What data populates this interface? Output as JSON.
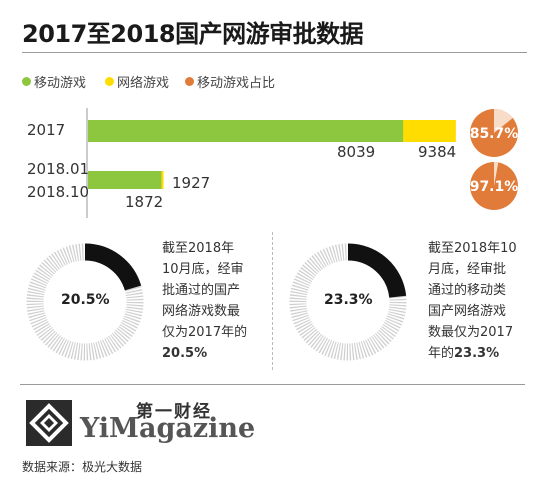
{
  "title": "2017至2018国产网游审批数据",
  "legend": [
    {
      "label": "移动游戏",
      "color": "#8dc63f"
    },
    {
      "label": "网络游戏",
      "color": "#ffdd00"
    },
    {
      "label": "移动游戏占比",
      "color": "#e07b39"
    }
  ],
  "chart_data": [
    {
      "type": "bar",
      "orientation": "horizontal",
      "stacked": true,
      "categories": [
        "2017",
        "2018.01\n2018.10"
      ],
      "category_labels": {
        "y2017": "2017",
        "y2018_line1": "2018.01",
        "y2018_line2": "2018.10"
      },
      "series": [
        {
          "name": "移动游戏",
          "values": [
            8039,
            1872
          ],
          "color": "#8dc63f"
        },
        {
          "name": "网络游戏",
          "values": [
            9384,
            1927
          ],
          "color": "#ffdd00"
        }
      ],
      "value_labels": {
        "mobile_2017": "8039",
        "total_2017": "9384",
        "total_2018": "1927",
        "mobile_2018": "1872"
      },
      "share": {
        "name": "移动游戏占比",
        "values": [
          85.7,
          97.1
        ],
        "labels": [
          "85.7%",
          "97.1%"
        ],
        "color": "#e07b39"
      }
    },
    {
      "type": "pie",
      "donut": true,
      "value": 20.5,
      "center_label": "20.5%",
      "note_lines": [
        "截至2018年",
        "10月底，经审",
        "批通过的国产",
        "网络游戏数最",
        "仅为2017年的"
      ],
      "note_bold": "20.5%"
    },
    {
      "type": "pie",
      "donut": true,
      "value": 23.3,
      "center_label": "23.3%",
      "note_lines": [
        "截至2018年10",
        "月底，经审批",
        "通过的移动类",
        "国产网络游戏",
        "数最仅为2017"
      ],
      "note_tail": "年的",
      "note_bold": "23.3%"
    }
  ],
  "brand": {
    "cn": "第一财经",
    "en": "YiMagazine"
  },
  "source": "数据来源：极光大数据"
}
